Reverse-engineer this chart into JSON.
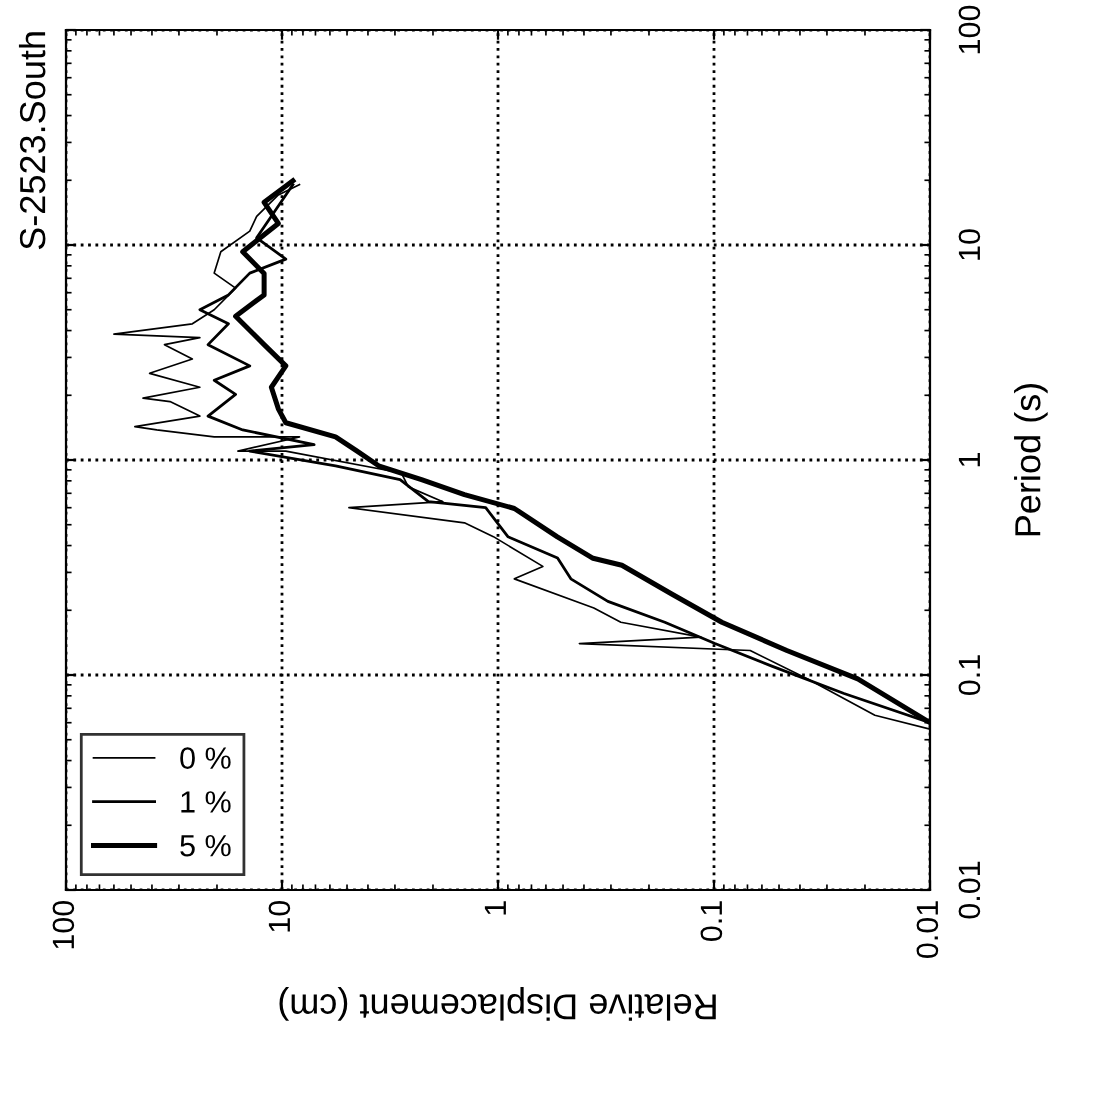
{
  "chart_data": {
    "type": "line",
    "title": "S-2523.South",
    "xlabel": "Relative Displacement (cm)",
    "ylabel": "Period (s)",
    "log": "xy",
    "xlim": [
      100,
      0.01
    ],
    "xticks": [
      100,
      10,
      1,
      0.1,
      0.01
    ],
    "ylim": [
      0.01,
      100
    ],
    "yticks": [
      0.01,
      0.1,
      1,
      10,
      100
    ],
    "grid": true,
    "legend": "bottom left",
    "line_style": "solid",
    "marker": "none",
    "series": [
      {
        "name": "0 %",
        "color": "#000000",
        "values": [
          0.056,
          0.065,
          0.096,
          0.13,
          0.14,
          0.15,
          0.176,
          0.205,
          0.28,
          0.32,
          0.44,
          0.51,
          0.6,
          0.64,
          0.75,
          0.87,
          1.1,
          1.1,
          1.28,
          1.28,
          1.38,
          1.43,
          1.6,
          1.87,
          1.94,
          2.18,
          2.53,
          2.95,
          3.44,
          3.71,
          3.85,
          4.3,
          5.0,
          6.3,
          7.4,
          9.3,
          11.6,
          13.6,
          17.1,
          19.1
        ],
        "x": [
          0.01,
          0.018,
          0.037,
          0.068,
          0.42,
          0.115,
          0.27,
          0.36,
          0.84,
          0.62,
          1.05,
          1.43,
          4.9,
          1.8,
          2.6,
          2.8,
          9.6,
          16,
          8.3,
          20.6,
          38,
          48,
          24,
          33,
          44,
          24,
          41,
          26,
          35,
          24,
          60,
          26,
          20.6,
          16.4,
          20.6,
          19.2,
          14.1,
          13.1,
          10.4,
          8.3
        ]
      },
      {
        "name": "1 %",
        "color": "#000000",
        "values": [
          0.06,
          0.082,
          0.11,
          0.14,
          0.176,
          0.22,
          0.28,
          0.35,
          0.44,
          0.6,
          0.64,
          0.81,
          0.94,
          1.1,
          1.18,
          1.38,
          1.6,
          2.02,
          2.35,
          2.74,
          3.44,
          4.3,
          5.0,
          5.86,
          7.4,
          8.6,
          10.8,
          13.6,
          17.1,
          19.1
        ],
        "x": [
          0.01,
          0.025,
          0.054,
          0.099,
          0.169,
          0.31,
          0.46,
          0.53,
          0.9,
          1.14,
          2.1,
          2.84,
          5.65,
          14.1,
          7.1,
          15.2,
          22,
          16.4,
          20.6,
          14.1,
          22,
          17.7,
          24,
          17.7,
          14.1,
          9.6,
          13.1,
          11.2,
          9.6,
          8.9
        ]
      },
      {
        "name": "5 %",
        "color": "#000000",
        "values": [
          0.06,
          0.096,
          0.13,
          0.176,
          0.238,
          0.324,
          0.349,
          0.439,
          0.595,
          0.69,
          0.81,
          0.94,
          1.1,
          1.28,
          1.49,
          1.73,
          2.18,
          2.74,
          3.44,
          4.66,
          5.86,
          7.37,
          9.3,
          12.6,
          15.8,
          19.9
        ],
        "x": [
          0.01,
          0.0216,
          0.046,
          0.092,
          0.157,
          0.267,
          0.363,
          0.531,
          0.84,
          1.43,
          2.26,
          3.57,
          4.49,
          5.65,
          9.6,
          10.4,
          11.2,
          9.6,
          12.1,
          16.4,
          12.1,
          12.1,
          15.2,
          10.4,
          12.1,
          8.9
        ]
      }
    ]
  }
}
